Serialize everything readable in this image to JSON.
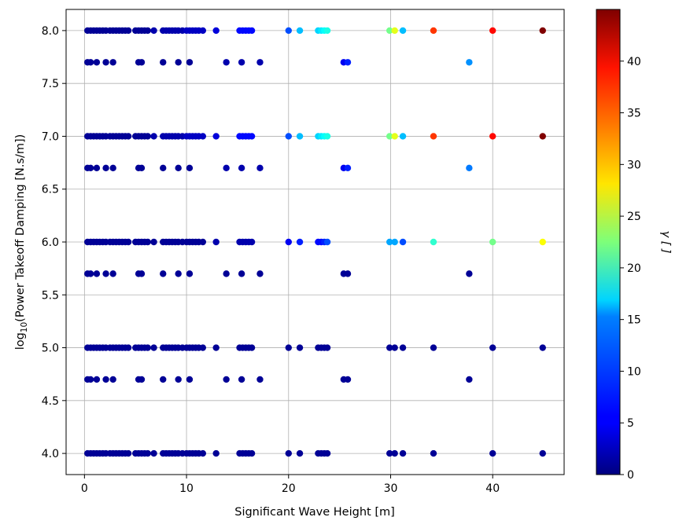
{
  "chart_data": {
    "type": "scatter",
    "xlabel": "Significant Wave Height [m]",
    "ylabel_main": "log",
    "ylabel_sub": "10",
    "ylabel_rest": "(Power Takeoff Damping [N.s/m])",
    "colorbar_label": "γ [ ]",
    "xlim": [
      -1.8,
      47.0
    ],
    "ylim": [
      3.8,
      8.2
    ],
    "xticks": [
      0,
      10,
      20,
      30,
      40
    ],
    "xtick_labels": [
      "0",
      "10",
      "20",
      "30",
      "40"
    ],
    "yticks": [
      4.0,
      4.5,
      5.0,
      5.5,
      6.0,
      6.5,
      7.0,
      7.5,
      8.0
    ],
    "ytick_labels": [
      "4.0",
      "4.5",
      "5.0",
      "5.5",
      "6.0",
      "6.5",
      "7.0",
      "7.5",
      "8.0"
    ],
    "colorbar_range": [
      0,
      45
    ],
    "colorbar_ticks": [
      0,
      5,
      10,
      15,
      20,
      25,
      30,
      35,
      40
    ],
    "colorbar_tick_labels": [
      "0",
      "5",
      "10",
      "15",
      "20",
      "25",
      "30",
      "35",
      "40"
    ],
    "colormap": "jet",
    "grid": true,
    "point_color_scale": "gamma",
    "full_rows_y": [
      8.0,
      7.0,
      6.0,
      5.0,
      4.0
    ],
    "full_rows_x": [
      0.3,
      0.6,
      0.9,
      1.2,
      1.5,
      1.8,
      2.1,
      2.5,
      2.8,
      3.1,
      3.4,
      3.7,
      4.0,
      4.3,
      5.0,
      5.3,
      5.6,
      5.9,
      6.2,
      6.8,
      7.7,
      8.0,
      8.3,
      8.6,
      8.9,
      9.2,
      9.6,
      10.0,
      10.3,
      10.6,
      10.9,
      11.2,
      11.6,
      12.9,
      15.2,
      15.5,
      15.8,
      16.1,
      16.4,
      20.0,
      21.1,
      22.9,
      23.2,
      23.5,
      23.8,
      29.9,
      30.4,
      31.2,
      34.2,
      40.0,
      44.9
    ],
    "sparse_rows_y": [
      7.7,
      6.7,
      5.7,
      4.7
    ],
    "sparse_rows_x": [
      0.3,
      0.6,
      1.2,
      2.1,
      2.8,
      5.3,
      5.6,
      7.7,
      9.2,
      10.3,
      13.9,
      15.4,
      17.2,
      25.4,
      25.8,
      37.7
    ],
    "gamma_by_row": {
      "8.0": [
        1,
        1,
        1,
        1,
        1,
        1,
        1,
        1,
        1,
        1,
        1,
        1,
        1,
        1,
        1,
        1,
        1,
        1,
        1,
        2,
        2,
        2,
        2,
        2,
        2,
        2,
        2,
        3,
        3,
        3,
        3,
        3,
        3,
        4,
        6,
        6,
        6,
        6,
        6,
        9,
        14,
        15,
        16,
        17,
        18,
        22,
        27,
        14,
        37,
        39,
        45
      ],
      "7.0": [
        1,
        1,
        1,
        1,
        1,
        1,
        1,
        1,
        1,
        1,
        1,
        1,
        1,
        1,
        1,
        1,
        1,
        1,
        1,
        2,
        2,
        2,
        2,
        2,
        2,
        2,
        2,
        3,
        3,
        3,
        3,
        3,
        3,
        4,
        6,
        6,
        6,
        6,
        6,
        9,
        14,
        15,
        16,
        17,
        18,
        22,
        27,
        14,
        37,
        39,
        45
      ],
      "6.0": [
        1,
        1,
        1,
        1,
        1,
        1,
        1,
        1,
        1,
        1,
        1,
        1,
        1,
        1,
        1,
        1,
        1,
        1,
        1,
        1,
        1,
        1,
        1,
        1,
        1,
        1,
        1,
        1,
        1,
        1,
        1,
        1,
        1,
        2,
        2,
        2,
        2,
        2,
        2,
        5,
        7,
        6,
        6,
        7,
        9,
        13,
        13,
        9,
        19,
        22,
        28
      ],
      "5.0": [
        1,
        1,
        1,
        1,
        1,
        1,
        1,
        1,
        1,
        1,
        1,
        1,
        1,
        1,
        1,
        1,
        1,
        1,
        1,
        1,
        1,
        1,
        1,
        1,
        1,
        1,
        1,
        1,
        1,
        1,
        1,
        1,
        1,
        1,
        1,
        1,
        1,
        1,
        1,
        1,
        1,
        1,
        1,
        1,
        1,
        1,
        1,
        1,
        1,
        1,
        1
      ],
      "4.0": [
        1,
        1,
        1,
        1,
        1,
        1,
        1,
        1,
        1,
        1,
        1,
        1,
        1,
        1,
        1,
        1,
        1,
        1,
        1,
        1,
        1,
        1,
        1,
        1,
        1,
        1,
        1,
        1,
        1,
        1,
        1,
        1,
        1,
        1,
        1,
        1,
        1,
        1,
        1,
        1,
        1,
        1,
        1,
        1,
        1,
        1,
        1,
        1,
        1,
        1,
        1
      ],
      "7.7": [
        1,
        1,
        1,
        1,
        1,
        1,
        1,
        1,
        1,
        1,
        2,
        2,
        2,
        5,
        7,
        12
      ],
      "6.7": [
        1,
        1,
        1,
        1,
        1,
        1,
        1,
        1,
        1,
        1,
        2,
        2,
        2,
        5,
        7,
        11
      ],
      "5.7": [
        1,
        1,
        1,
        1,
        1,
        1,
        1,
        1,
        1,
        1,
        1,
        1,
        1,
        1,
        1,
        1
      ],
      "4.7": [
        1,
        1,
        1,
        1,
        1,
        1,
        1,
        1,
        1,
        1,
        1,
        1,
        1,
        1,
        1,
        1
      ]
    }
  }
}
